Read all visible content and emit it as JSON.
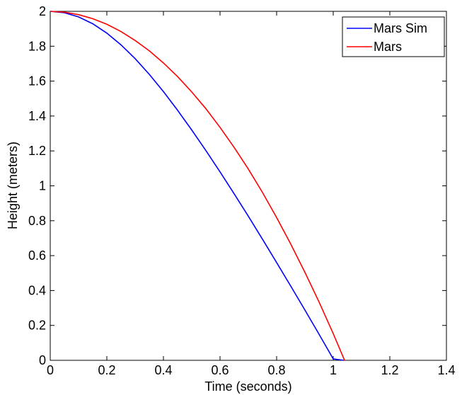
{
  "chart_data": {
    "type": "line",
    "title": "",
    "xlabel": "Time (seconds)",
    "ylabel": "Height (meters)",
    "xlim": [
      0,
      1.4
    ],
    "ylim": [
      0,
      2
    ],
    "xticks": [
      0,
      0.2,
      0.4,
      0.6,
      0.8,
      1,
      1.2,
      1.4
    ],
    "xtick_labels": [
      "0",
      "0.2",
      "0.4",
      "0.6",
      "0.8",
      "1",
      "1.2",
      "1.4"
    ],
    "yticks": [
      0,
      0.2,
      0.4,
      0.6,
      0.8,
      1,
      1.2,
      1.4,
      1.6,
      1.8,
      2
    ],
    "ytick_labels": [
      "0",
      "0.2",
      "0.4",
      "0.6",
      "0.8",
      "1",
      "1.2",
      "1.4",
      "1.6",
      "1.8",
      "2"
    ],
    "grid": false,
    "legend_position": "top-right",
    "series": [
      {
        "name": "Mars Sim",
        "color": "#0000ff",
        "x": [
          0,
          0.05,
          0.1,
          0.15,
          0.2,
          0.25,
          0.3,
          0.35,
          0.4,
          0.45,
          0.5,
          0.55,
          0.6,
          0.65,
          0.7,
          0.75,
          0.8,
          0.85,
          0.9,
          0.95,
          1.0,
          1.037
        ],
        "y": [
          2.0,
          1.992,
          1.968,
          1.929,
          1.875,
          1.808,
          1.729,
          1.639,
          1.54,
          1.433,
          1.32,
          1.202,
          1.08,
          0.954,
          0.826,
          0.694,
          0.56,
          0.425,
          0.288,
          0.149,
          0.008,
          0.0
        ]
      },
      {
        "name": "Mars",
        "color": "#ff0000",
        "x": [
          0,
          0.05,
          0.1,
          0.15,
          0.2,
          0.25,
          0.3,
          0.35,
          0.4,
          0.45,
          0.5,
          0.55,
          0.6,
          0.65,
          0.7,
          0.75,
          0.8,
          0.85,
          0.9,
          0.95,
          1.0,
          1.04
        ],
        "y": [
          2.0,
          1.995,
          1.981,
          1.958,
          1.926,
          1.884,
          1.833,
          1.774,
          1.704,
          1.626,
          1.538,
          1.442,
          1.335,
          1.22,
          1.096,
          0.962,
          0.818,
          0.666,
          0.504,
          0.334,
          0.153,
          0.0
        ]
      }
    ]
  }
}
